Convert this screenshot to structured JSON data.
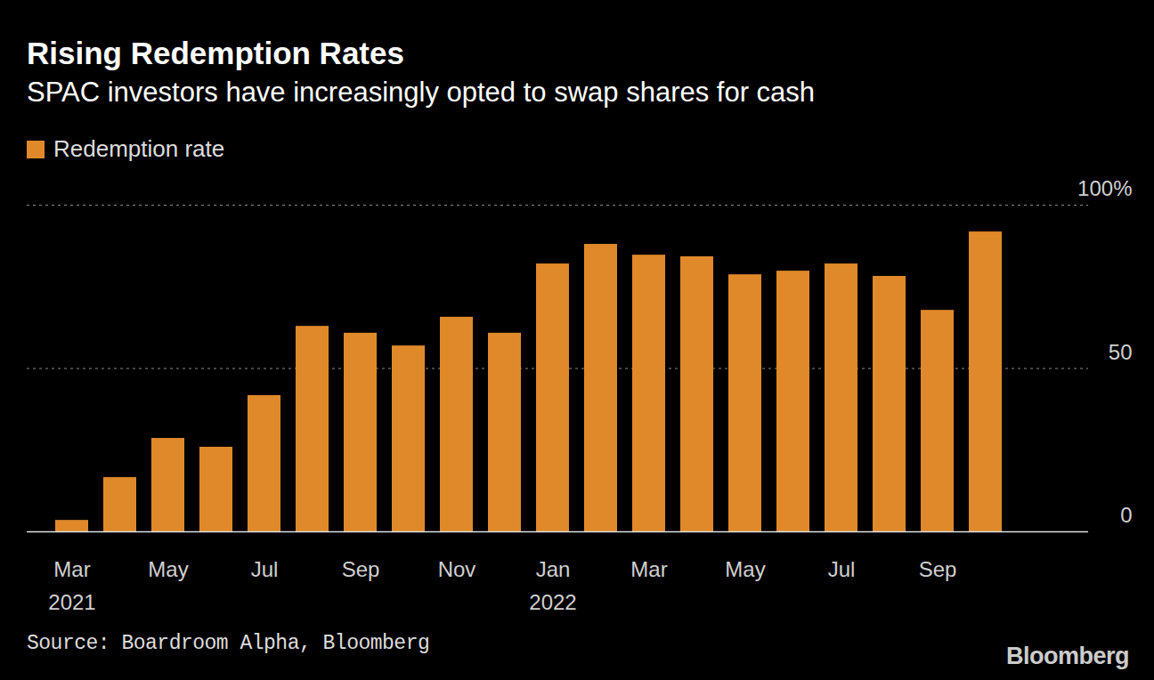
{
  "chart_data": {
    "type": "bar",
    "title": "Rising Redemption Rates",
    "subtitle": "SPAC investors have increasingly opted to swap shares for cash",
    "source": "Source: Boardroom Alpha, Bloomberg",
    "credit": "Bloomberg",
    "categories": [
      "Mar\n2021",
      null,
      "May",
      null,
      "Jul",
      null,
      "Sep",
      null,
      "Nov",
      null,
      "Jan\n2022",
      null,
      "Mar",
      null,
      "May",
      null,
      "Jul",
      null,
      "Sep",
      null
    ],
    "series": [
      {
        "name": "Redemption rate",
        "color": "#e0892a",
        "values": [
          3.5,
          16.6,
          28.6,
          25.9,
          41.7,
          62.9,
          60.8,
          56.9,
          65.7,
          60.8,
          82,
          88,
          84.7,
          84.2,
          78.7,
          79.8,
          82,
          78.2,
          67.8,
          91.8
        ]
      }
    ],
    "ylim": [
      0,
      100
    ],
    "yticks": [
      0,
      50,
      {
        "value": 100,
        "label": "100%"
      }
    ],
    "grid": true,
    "legend": "top-left"
  }
}
